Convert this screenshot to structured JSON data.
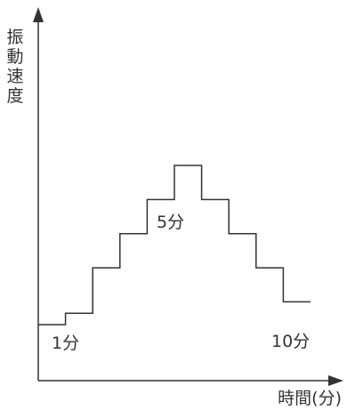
{
  "chart_data": {
    "type": "line",
    "step": true,
    "title": "",
    "ylabel": "振動速度",
    "xlabel": "時間(分)",
    "grid": false,
    "legend": "none",
    "x": [
      0,
      1,
      2,
      3,
      4,
      5,
      6,
      7,
      8,
      9,
      10
    ],
    "values": [
      0,
      1,
      5,
      8,
      11,
      14,
      11,
      8,
      5,
      2,
      2
    ],
    "xlim": [
      0,
      10
    ],
    "ylim": [
      0,
      14
    ],
    "annotations": [
      {
        "text": "1分",
        "x": 1
      },
      {
        "text": "5分",
        "x": 5
      },
      {
        "text": "10分",
        "x": 10
      }
    ],
    "colors": {
      "line": "#333333",
      "axis": "#333333",
      "text": "#333333"
    }
  }
}
